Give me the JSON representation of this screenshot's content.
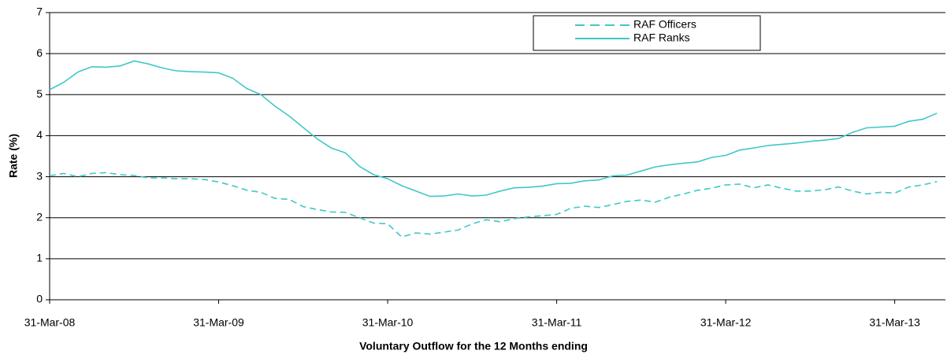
{
  "chart_data": {
    "type": "line",
    "x_label": "Voluntary Outflow for the 12 Months ending",
    "y_label": "Rate (%)",
    "categories": [
      "31-Mar-08",
      null,
      null,
      null,
      null,
      null,
      null,
      null,
      null,
      null,
      null,
      null,
      "31-Mar-09",
      null,
      null,
      null,
      null,
      null,
      null,
      null,
      null,
      null,
      null,
      null,
      "31-Mar-10",
      null,
      null,
      null,
      null,
      null,
      null,
      null,
      null,
      null,
      null,
      null,
      "31-Mar-11",
      null,
      null,
      null,
      null,
      null,
      null,
      null,
      null,
      null,
      null,
      null,
      "31-Mar-12",
      null,
      null,
      null,
      null,
      null,
      null,
      null,
      null,
      null,
      null,
      null,
      "31-Mar-13",
      null,
      null,
      null
    ],
    "series": [
      {
        "name": "RAF Officers",
        "color": "#40c8c8",
        "style": "dashed",
        "values": [
          3.02,
          3.08,
          3.0,
          3.08,
          3.1,
          3.05,
          3.03,
          2.97,
          2.97,
          2.95,
          2.95,
          2.93,
          2.87,
          2.78,
          2.67,
          2.62,
          2.47,
          2.45,
          2.27,
          2.2,
          2.14,
          2.13,
          2.0,
          1.87,
          1.85,
          1.53,
          1.63,
          1.6,
          1.65,
          1.7,
          1.85,
          1.95,
          1.9,
          1.98,
          2.02,
          2.05,
          2.08,
          2.23,
          2.28,
          2.25,
          2.32,
          2.4,
          2.43,
          2.38,
          2.5,
          2.58,
          2.67,
          2.72,
          2.8,
          2.82,
          2.73,
          2.8,
          2.72,
          2.65,
          2.65,
          2.68,
          2.75,
          2.65,
          2.58,
          2.62,
          2.6,
          2.75,
          2.8,
          2.88
        ]
      },
      {
        "name": "RAF Ranks",
        "color": "#40c8c8",
        "style": "solid",
        "values": [
          5.12,
          5.3,
          5.55,
          5.68,
          5.67,
          5.7,
          5.82,
          5.75,
          5.65,
          5.58,
          5.56,
          5.55,
          5.53,
          5.4,
          5.15,
          5.0,
          4.72,
          4.48,
          4.2,
          3.92,
          3.7,
          3.58,
          3.25,
          3.05,
          2.95,
          2.78,
          2.65,
          2.52,
          2.53,
          2.58,
          2.53,
          2.55,
          2.65,
          2.73,
          2.74,
          2.77,
          2.83,
          2.84,
          2.9,
          2.92,
          3.02,
          3.04,
          3.14,
          3.24,
          3.29,
          3.33,
          3.36,
          3.47,
          3.52,
          3.65,
          3.7,
          3.76,
          3.79,
          3.82,
          3.86,
          3.89,
          3.93,
          4.08,
          4.19,
          4.21,
          4.23,
          4.35,
          4.4,
          4.55
        ]
      }
    ],
    "ylim": [
      0,
      7
    ],
    "yticks": [
      0,
      1,
      2,
      3,
      4,
      5,
      6,
      7
    ],
    "grid": true,
    "legend": "upper right"
  }
}
